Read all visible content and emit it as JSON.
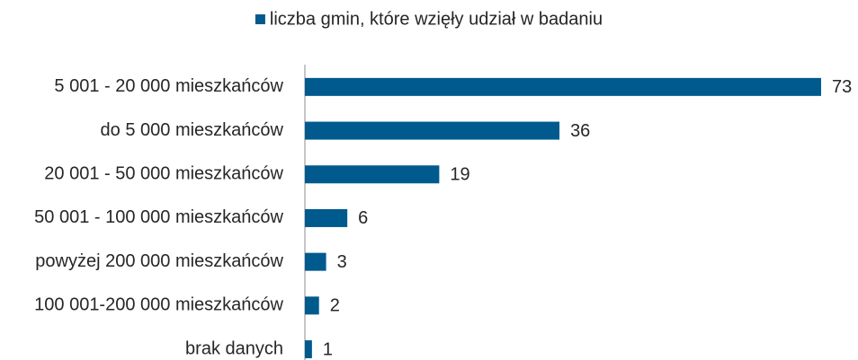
{
  "chart_data": {
    "type": "hbar",
    "categories": [
      "5 001 - 20 000 mieszkańców",
      "do 5 000 mieszkańców",
      "20 001 - 50 000 mieszkańców",
      "50 001 - 100 000 mieszkańców",
      "powyżej 200 000 mieszkańców",
      "100 001-200 000 mieszkańców",
      "brak danych"
    ],
    "series": [
      {
        "name": "liczba gmin, które wzięły udział w badaniu",
        "color": "#005a8e",
        "values": [
          73,
          36,
          19,
          6,
          3,
          2,
          1
        ]
      }
    ],
    "legend": "top"
  }
}
